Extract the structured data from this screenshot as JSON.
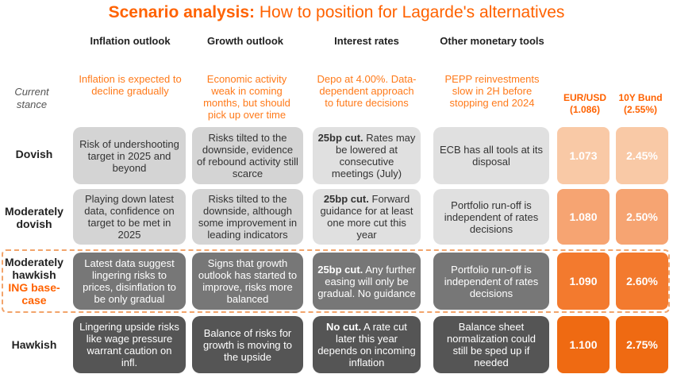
{
  "title": {
    "bold": "Scenario analysis:",
    "rest": " How to position for Lagarde's alternatives"
  },
  "columns": [
    "Inflation outlook",
    "Growth outlook",
    "Interest rates",
    "Other monetary tools"
  ],
  "market_headers": [
    "EUR/USD (1.086)",
    "10Y Bund (2.55%)"
  ],
  "current_stance": {
    "label": "Current stance",
    "values": [
      "Inflation is expected to decline gradually",
      "Economic activity weak in coming months, but should pick up over time",
      "Depo at 4.00%. Data-dependent approach to future decisions",
      "PEPP reinvestments slow in 2H before stopping end 2024"
    ]
  },
  "rows": [
    {
      "label": "Dovish",
      "inflation": "Risk of undershooting target in 2025 and beyond",
      "growth": "Risks tilted to the downside, evidence of rebound activity still scarce",
      "rates_bold": "25bp cut.",
      "rates_rest": " Rates may be lowered at consecutive meetings (July)",
      "other": "ECB has all tools at its disposal",
      "eurusd": "1.073",
      "bund": "2.45%"
    },
    {
      "label": "Moderately dovish",
      "inflation": "Playing down latest data, confidence on target to be met in 2025",
      "growth": "Risks tilted to the downside, although some improvement in leading indicators",
      "rates_bold": "25bp cut.",
      "rates_rest": " Forward guidance for at least one more cut this year",
      "other": "Portfolio run-off is independent of rates decisions",
      "eurusd": "1.080",
      "bund": "2.50%"
    },
    {
      "label": "Moderately hawkish",
      "label_extra": "ING base-case",
      "inflation": "Latest data suggest lingering risks to prices, disinflation to be only gradual",
      "growth": "Signs that growth outlook has started to improve, risks more balanced",
      "rates_bold": "25bp cut.",
      "rates_rest": " Any further easing will only be gradual. No guidance",
      "other": "Portfolio run-off is independent of rates decisions",
      "eurusd": "1.090",
      "bund": "2.60%"
    },
    {
      "label": "Hawkish",
      "inflation": "Lingering upside risks like wage pressure warrant caution on infl.",
      "growth": "Balance of risks for growth is moving to the upside",
      "rates_bold": "No cut.",
      "rates_rest": " A rate cut later this year depends on incoming inflation",
      "other": "Balance sheet normalization could still be sped up if needed",
      "eurusd": "1.100",
      "bund": "2.75%"
    }
  ],
  "colors": {
    "accent": "#ff6200",
    "market_shades": [
      "#f9c9a6",
      "#f6a472",
      "#f37a2e",
      "#ef6a12"
    ]
  }
}
